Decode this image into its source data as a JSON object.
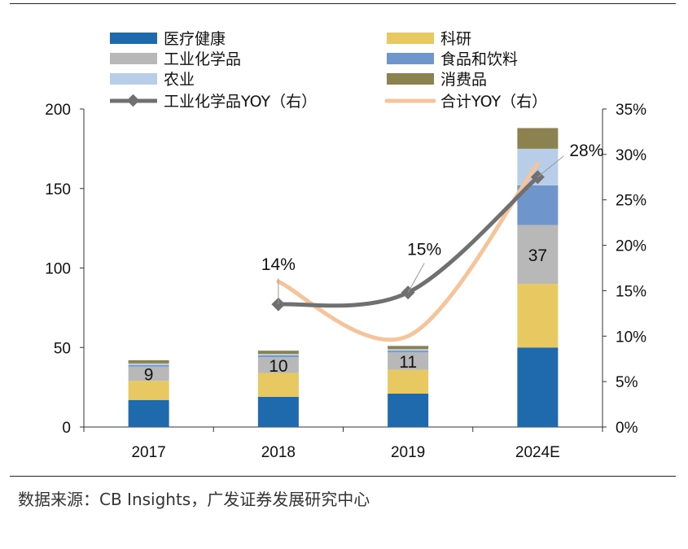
{
  "chart_data": {
    "type": "bar",
    "stacked": true,
    "categories": [
      "2017",
      "2018",
      "2019",
      "2024E"
    ],
    "y_left": {
      "ticks": [
        "200",
        "150",
        "100",
        "50",
        "0"
      ],
      "ylim": [
        0,
        200
      ]
    },
    "y_right": {
      "ticks": [
        "35%",
        "30%",
        "25%",
        "20%",
        "15%",
        "10%",
        "5%",
        "0%"
      ],
      "ylim": [
        0,
        35
      ]
    },
    "series": [
      {
        "name": "医疗健康",
        "color": "#1f6aad",
        "values": [
          17,
          19,
          21,
          50
        ]
      },
      {
        "name": "科研",
        "color": "#e8c860",
        "values": [
          12,
          15,
          15,
          40
        ]
      },
      {
        "name": "工业化学品",
        "color": "#b8b8b8",
        "values": [
          9,
          10,
          11,
          37
        ]
      },
      {
        "name": "食品和饮料",
        "color": "#6f96cc",
        "values": [
          1,
          1,
          1,
          25
        ]
      },
      {
        "name": "农业",
        "color": "#b7cde8",
        "values": [
          1,
          1,
          1,
          23
        ]
      },
      {
        "name": "消费品",
        "color": "#8c8250",
        "values": [
          2,
          2,
          2,
          13
        ]
      }
    ],
    "bar_labels": [
      "9",
      "10",
      "11",
      "37"
    ],
    "lines": [
      {
        "name": "工业化学品YOY（右）",
        "color": "#707070",
        "categories": [
          "2018",
          "2019",
          "2024E"
        ],
        "values": [
          13.5,
          14.8,
          27.5
        ],
        "labels": [
          "14%",
          "15%",
          "28%"
        ]
      },
      {
        "name": "合计YOY（右）",
        "color": "#f5c49b",
        "categories": [
          "2018",
          "2019",
          "2024E"
        ],
        "values": [
          16,
          10,
          29
        ]
      }
    ]
  },
  "source_text": "数据来源：CB Insights，广发证券发展研究中心"
}
